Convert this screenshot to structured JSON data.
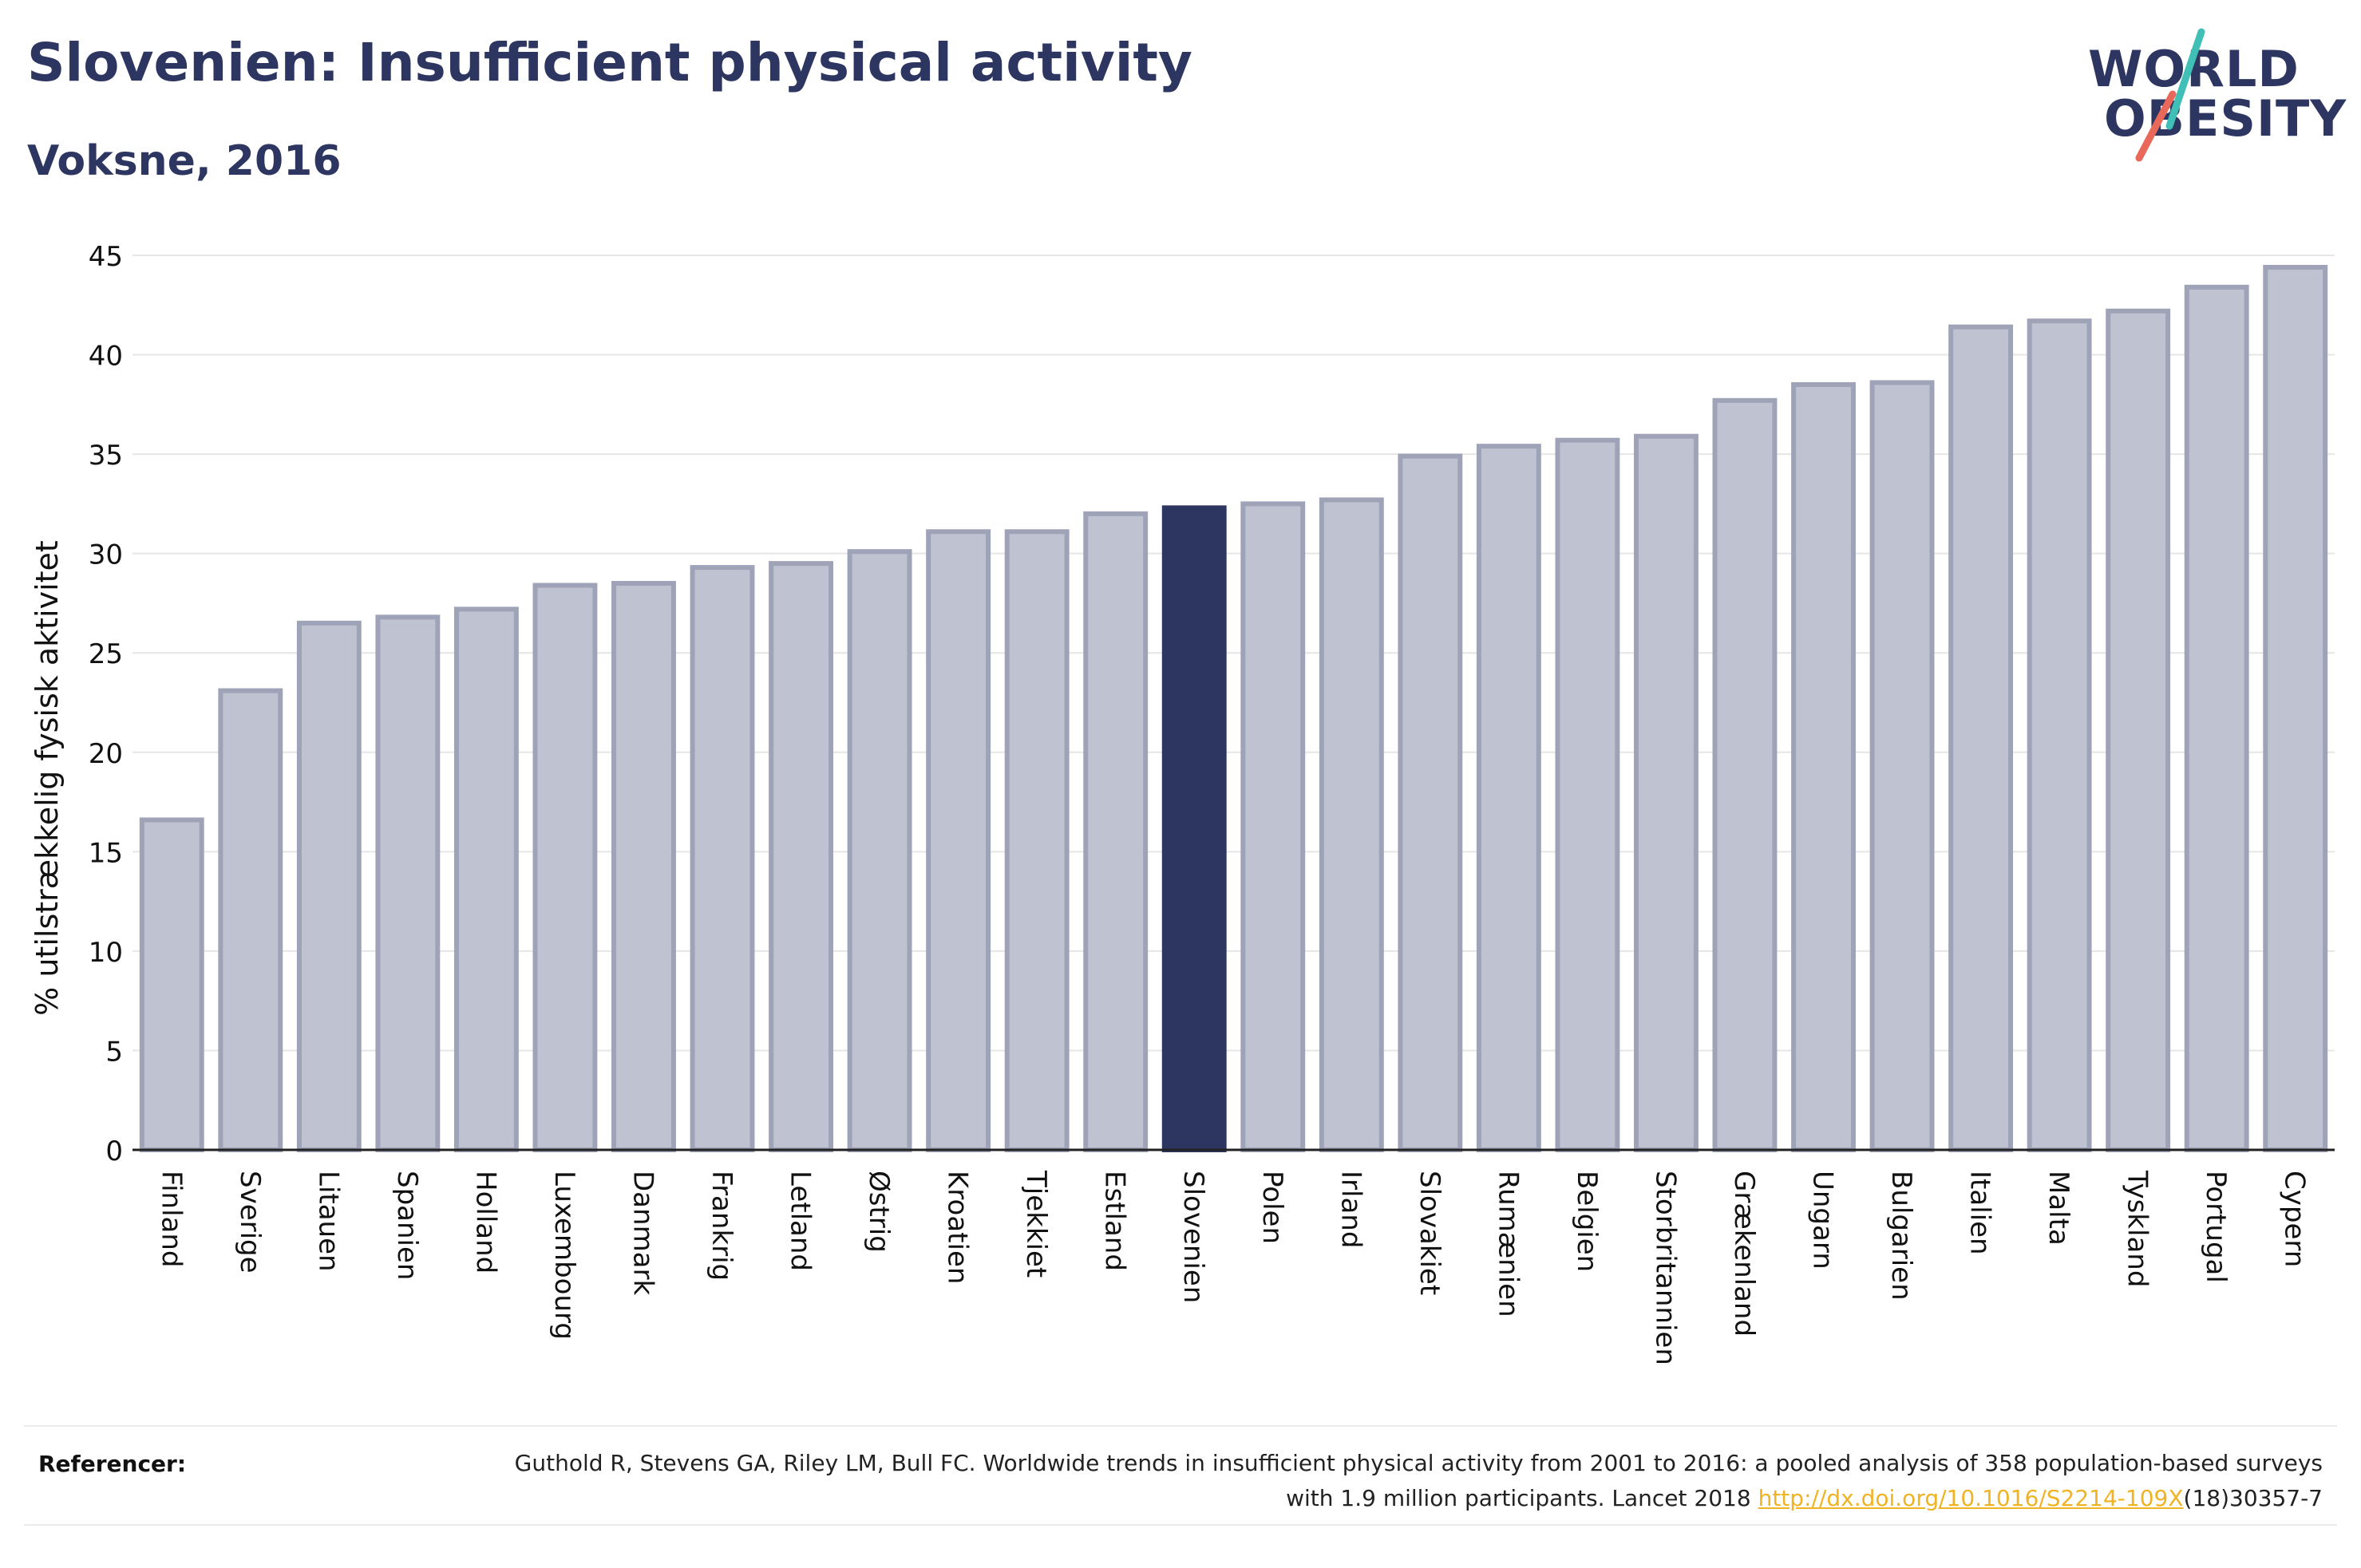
{
  "header": {
    "title": "Slovenien: Insufficient physical activity",
    "subtitle": "Voksne, 2016"
  },
  "logo": {
    "line1": "WORLD",
    "line2": "OBESITY",
    "accent_teal": "#3fbfb5",
    "accent_coral": "#e8685a"
  },
  "colors": {
    "bar_fill": "#bfc2d0",
    "bar_stroke": "#9ea3b8",
    "highlight": "#2d3561",
    "grid": "#e6e6e6",
    "axis_text": "#111111"
  },
  "chart_data": {
    "type": "bar",
    "title": "Slovenien: Insufficient physical activity",
    "subtitle": "Voksne, 2016",
    "xlabel": "",
    "ylabel": "% utilstrækkelig fysisk aktivitet",
    "ylim": [
      0,
      45
    ],
    "yticks": [
      0,
      5,
      10,
      15,
      20,
      25,
      30,
      35,
      40,
      45
    ],
    "grid": true,
    "highlight_category": "Slovenien",
    "categories": [
      "Finland",
      "Sverige",
      "Litauen",
      "Spanien",
      "Holland",
      "Luxembourg",
      "Danmark",
      "Frankrig",
      "Letland",
      "Østrig",
      "Kroatien",
      "Tjekkiet",
      "Estland",
      "Slovenien",
      "Polen",
      "Irland",
      "Slovakiet",
      "Rumænien",
      "Belgien",
      "Storbritannien",
      "Grækenland",
      "Ungarn",
      "Bulgarien",
      "Italien",
      "Malta",
      "Tyskland",
      "Portugal",
      "Cypern"
    ],
    "values": [
      16.6,
      23.1,
      26.5,
      26.8,
      27.2,
      28.4,
      28.5,
      29.3,
      29.5,
      30.1,
      31.1,
      31.1,
      32.0,
      32.3,
      32.5,
      32.7,
      34.9,
      35.4,
      35.7,
      35.9,
      37.7,
      38.5,
      38.6,
      41.4,
      41.7,
      42.2,
      43.4,
      44.4
    ]
  },
  "references": {
    "label": "Referencer:",
    "text_before": "Guthold R, Stevens GA, Riley LM, Bull FC. Worldwide trends in insufficient physical activity from 2001 to 2016: a pooled analysis of 358 population-based surveys with 1.9 million participants. Lancet 2018 ",
    "link": "http://dx.doi.org/10.1016/S2214-109X",
    "text_after": "(18)30357-7"
  }
}
